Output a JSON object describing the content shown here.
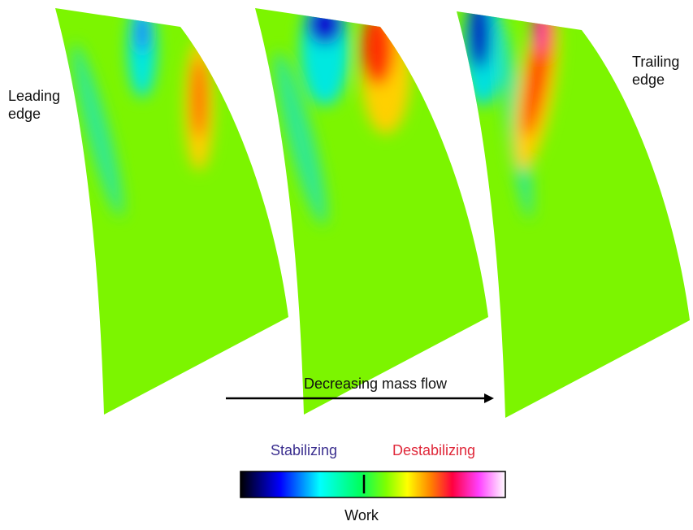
{
  "labels": {
    "leading_edge": [
      "Leading",
      "edge"
    ],
    "trailing_edge": [
      "Trailing",
      "edge"
    ],
    "flow": "Decreasing mass flow"
  },
  "colorbar": {
    "low": "Stabilizing",
    "high": "Destabilizing",
    "title": "Work"
  }
}
